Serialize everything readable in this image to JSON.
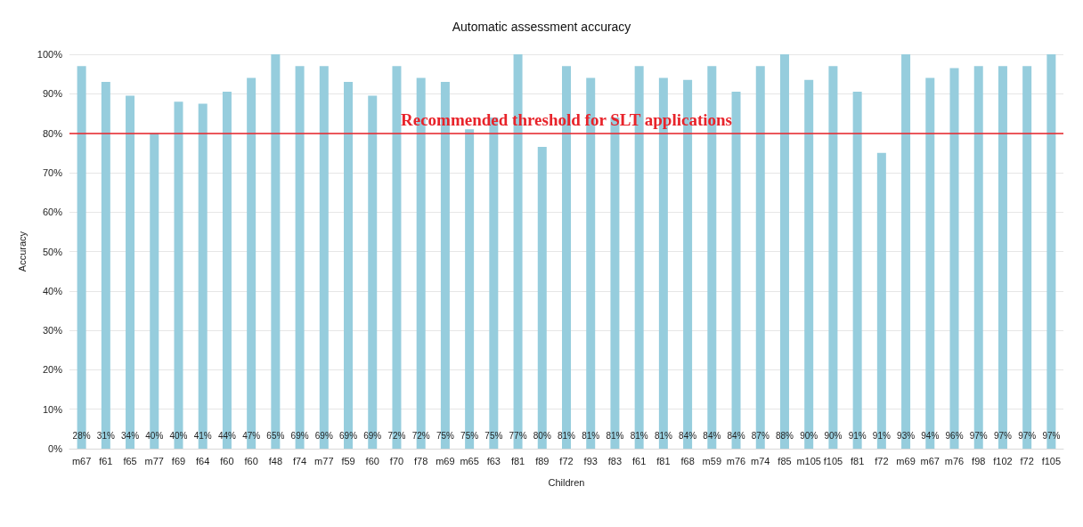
{
  "chart_data": {
    "type": "bar",
    "title": "Automatic assessment accuracy",
    "xlabel": "Children",
    "ylabel": "Accuracy",
    "categories": [
      "m67",
      "f61",
      "f65",
      "m77",
      "f69",
      "f64",
      "f60",
      "f60",
      "f48",
      "f74",
      "m77",
      "f59",
      "f60",
      "f70",
      "f78",
      "m69",
      "m65",
      "f63",
      "f81",
      "f89",
      "f72",
      "f93",
      "f83",
      "f61",
      "f81",
      "f68",
      "m59",
      "m76",
      "m74",
      "f85",
      "m105",
      "f105",
      "f81",
      "f72",
      "m69",
      "m67",
      "m76",
      "f98",
      "f102",
      "f72",
      "f105"
    ],
    "values": [
      97,
      93,
      89.5,
      80,
      88,
      87.5,
      90.5,
      94,
      100,
      97,
      97,
      93,
      89.5,
      97,
      94,
      93,
      81,
      84,
      100,
      76.5,
      97,
      94,
      84,
      97,
      94,
      93.5,
      97,
      90.5,
      97,
      100,
      93.5,
      97,
      90.5,
      75,
      100,
      94,
      96.5,
      97,
      97,
      97,
      100
    ],
    "annotations": [
      "28%",
      "31%",
      "34%",
      "40%",
      "40%",
      "41%",
      "44%",
      "47%",
      "65%",
      "69%",
      "69%",
      "69%",
      "69%",
      "72%",
      "72%",
      "75%",
      "75%",
      "75%",
      "77%",
      "80%",
      "81%",
      "81%",
      "81%",
      "81%",
      "81%",
      "84%",
      "84%",
      "84%",
      "87%",
      "88%",
      "90%",
      "90%",
      "91%",
      "91%",
      "93%",
      "94%",
      "96%",
      "97%",
      "97%",
      "97%",
      "97%"
    ],
    "color": "#96cddd",
    "ylim": [
      0,
      100
    ],
    "yticks": [
      {
        "value": 0,
        "label": "0%"
      },
      {
        "value": 10,
        "label": "10%"
      },
      {
        "value": 20,
        "label": "20%"
      },
      {
        "value": 30,
        "label": "30%"
      },
      {
        "value": 40,
        "label": "40%"
      },
      {
        "value": 50,
        "label": "50%"
      },
      {
        "value": 60,
        "label": "60%"
      },
      {
        "value": 70,
        "label": "70%"
      },
      {
        "value": 80,
        "label": "80%"
      },
      {
        "value": 90,
        "label": "90%"
      },
      {
        "value": 100,
        "label": "100%"
      }
    ],
    "ref_lines": [
      {
        "axis": "y",
        "value": 80,
        "label": "Recommended threshold for SLT applications",
        "color": "#e8232a"
      }
    ],
    "grid": "y"
  }
}
